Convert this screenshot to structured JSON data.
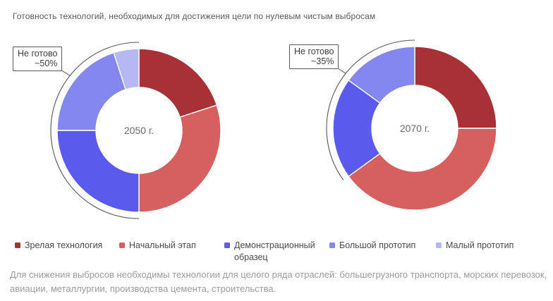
{
  "title": "Готовность технологий, необходимых для достижения цели по нулевым чистым выбросам",
  "chart_data": [
    {
      "type": "pie",
      "subtype": "donut",
      "center_label": "2050 г.",
      "annotation": {
        "label": "Не готово",
        "value": "~50%"
      },
      "categories": [
        "Зрелая технология",
        "Начальный этап",
        "Демонстрационный образец",
        "Большой прототип",
        "Малый прототип"
      ],
      "values": [
        20,
        30,
        25,
        20,
        5
      ]
    },
    {
      "type": "pie",
      "subtype": "donut",
      "center_label": "2070 г.",
      "annotation": {
        "label": "Не готово",
        "value": "~35%"
      },
      "categories": [
        "Зрелая технология",
        "Начальный этап",
        "Демонстрационный образец",
        "Большой прототип",
        "Малый прототип"
      ],
      "values": [
        25,
        40,
        20,
        15,
        0
      ]
    }
  ],
  "legend": [
    {
      "label": "Зрелая технология",
      "color": "#a73136"
    },
    {
      "label": "Начальный этап",
      "color": "#d65f60"
    },
    {
      "label": "Демонстрационный образец",
      "color": "#5a5aec"
    },
    {
      "label": "Большой прототип",
      "color": "#8487ee"
    },
    {
      "label": "Малый прототип",
      "color": "#b6b8f4"
    }
  ],
  "footer": {
    "line1": "Для снижения выбросов необходимы технологии для целого ряда отраслей: большегрузного транспорта, морских перевозок,",
    "line2": "авиации, металлургии, производства цемента, строительства."
  }
}
